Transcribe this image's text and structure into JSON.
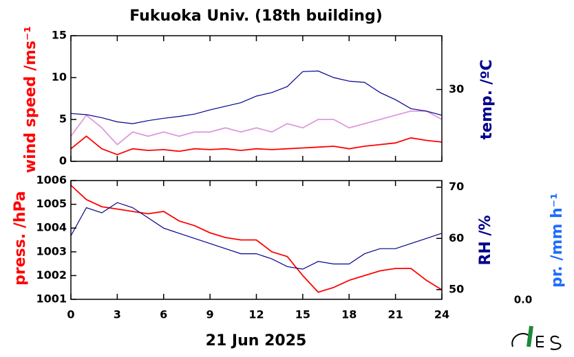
{
  "chart_data": [
    {
      "type": "line",
      "title": "Fukuoka Univ. (18th building)",
      "ylabel": "wind speed /ms⁻¹",
      "y2label": "temp. /ºC",
      "x": [
        0,
        1,
        2,
        3,
        4,
        5,
        6,
        7,
        8,
        9,
        10,
        11,
        12,
        13,
        14,
        15,
        16,
        17,
        18,
        19,
        20,
        21,
        22,
        23,
        24
      ],
      "xlim": [
        0,
        24
      ],
      "xticks": [
        0,
        3,
        6,
        9,
        12,
        15,
        18,
        21,
        24
      ],
      "ylim": [
        0,
        15
      ],
      "yticks": [
        0,
        5,
        10,
        15
      ],
      "y2lim": [
        18,
        39
      ],
      "y2ticks": [
        30
      ],
      "series": [
        {
          "color": "#dd99dd",
          "values": [
            3,
            5.5,
            4,
            2,
            3.5,
            3,
            3.5,
            3,
            3.5,
            3.5,
            4,
            3.5,
            4,
            3.5,
            4.5,
            4,
            5,
            5,
            4,
            4.5,
            5,
            5.5,
            6,
            6,
            5
          ]
        },
        {
          "color": "#ff0000",
          "values": [
            1.5,
            3,
            1.5,
            0.8,
            1.5,
            1.3,
            1.4,
            1.2,
            1.5,
            1.4,
            1.5,
            1.3,
            1.5,
            1.4,
            1.5,
            1.6,
            1.7,
            1.8,
            1.5,
            1.8,
            2,
            2.2,
            2.8,
            2.5,
            2.3
          ]
        },
        {
          "color": "#00008b",
          "axis": "y2",
          "values": [
            26,
            25.8,
            25.3,
            24.6,
            24.3,
            24.8,
            25.2,
            25.5,
            25.9,
            26.6,
            27.2,
            27.8,
            28.9,
            29.5,
            30.5,
            33,
            33.1,
            32,
            31.4,
            31.2,
            29.5,
            28.3,
            26.8,
            26.4,
            25.7
          ]
        }
      ]
    },
    {
      "type": "line",
      "xlabel": "21 Jun 2025",
      "ylabel": "press. /hPa",
      "y2label": "RH /%",
      "y3label": "pr. /mm h⁻¹",
      "precipitation_total": {
        "value": 0,
        "label": "0.0"
      },
      "x": [
        0,
        1,
        2,
        3,
        4,
        5,
        6,
        7,
        8,
        9,
        10,
        11,
        12,
        13,
        14,
        15,
        16,
        17,
        18,
        19,
        20,
        21,
        22,
        23,
        24
      ],
      "xlim": [
        0,
        24
      ],
      "xticks": [
        0,
        3,
        6,
        9,
        12,
        15,
        18,
        21,
        24
      ],
      "ylim": [
        1001,
        1006
      ],
      "yticks": [
        1001,
        1002,
        1003,
        1004,
        1005,
        1006
      ],
      "y2lim": [
        48.1,
        71.3
      ],
      "y2ticks": [
        50,
        60,
        70
      ],
      "series": [
        {
          "color": "#ff0000",
          "values": [
            1005.8,
            1005.2,
            1004.9,
            1004.8,
            1004.7,
            1004.6,
            1004.7,
            1004.3,
            1004.1,
            1003.8,
            1003.6,
            1003.5,
            1003.5,
            1003.0,
            1002.8,
            1002.0,
            1001.3,
            1001.5,
            1001.8,
            1002.0,
            1002.2,
            1002.3,
            1002.3,
            1001.8,
            1001.4
          ]
        },
        {
          "color": "#00008b",
          "axis": "y2",
          "values": [
            60.5,
            66,
            65,
            67,
            66,
            64,
            62,
            61,
            60,
            59,
            58,
            57,
            57,
            56,
            54.5,
            54,
            55.5,
            55,
            55,
            57,
            58,
            58,
            59,
            60,
            61
          ]
        }
      ]
    }
  ]
}
